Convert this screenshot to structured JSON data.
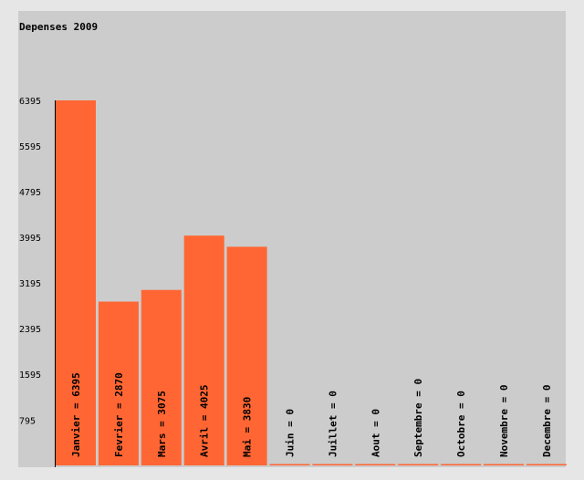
{
  "chart_data": {
    "type": "bar",
    "title": "Depenses 2009",
    "xlabel": "",
    "ylabel": "",
    "ylim": [
      0,
      6395
    ],
    "yticks": [
      795,
      1595,
      2395,
      3195,
      3995,
      4795,
      5595,
      6395
    ],
    "grid": false,
    "legend": "none",
    "categories": [
      "Janvier",
      "Fevrier",
      "Mars",
      "Avril",
      "Mai",
      "Juin",
      "Juillet",
      "Aout",
      "Septembre",
      "Octobre",
      "Novembre",
      "Decembre"
    ],
    "values": [
      6395,
      2870,
      3075,
      4025,
      3830,
      0,
      0,
      0,
      0,
      0,
      0,
      0
    ],
    "bar_labels": [
      "Janvier = 6395",
      "Fevrier = 2870",
      "Mars = 3075",
      "Avril = 4025",
      "Mai = 3830",
      "Juin = 0",
      "Juillet = 0",
      "Aout = 0",
      "Septembre = 0",
      "Octobre = 0",
      "Novembre = 0",
      "Decembre = 0"
    ],
    "colors": {
      "bar": "#ff6633",
      "plot_background": "#cccccc",
      "page_background": "#e6e6e6",
      "text": "#000000",
      "axis": "#000000"
    }
  }
}
